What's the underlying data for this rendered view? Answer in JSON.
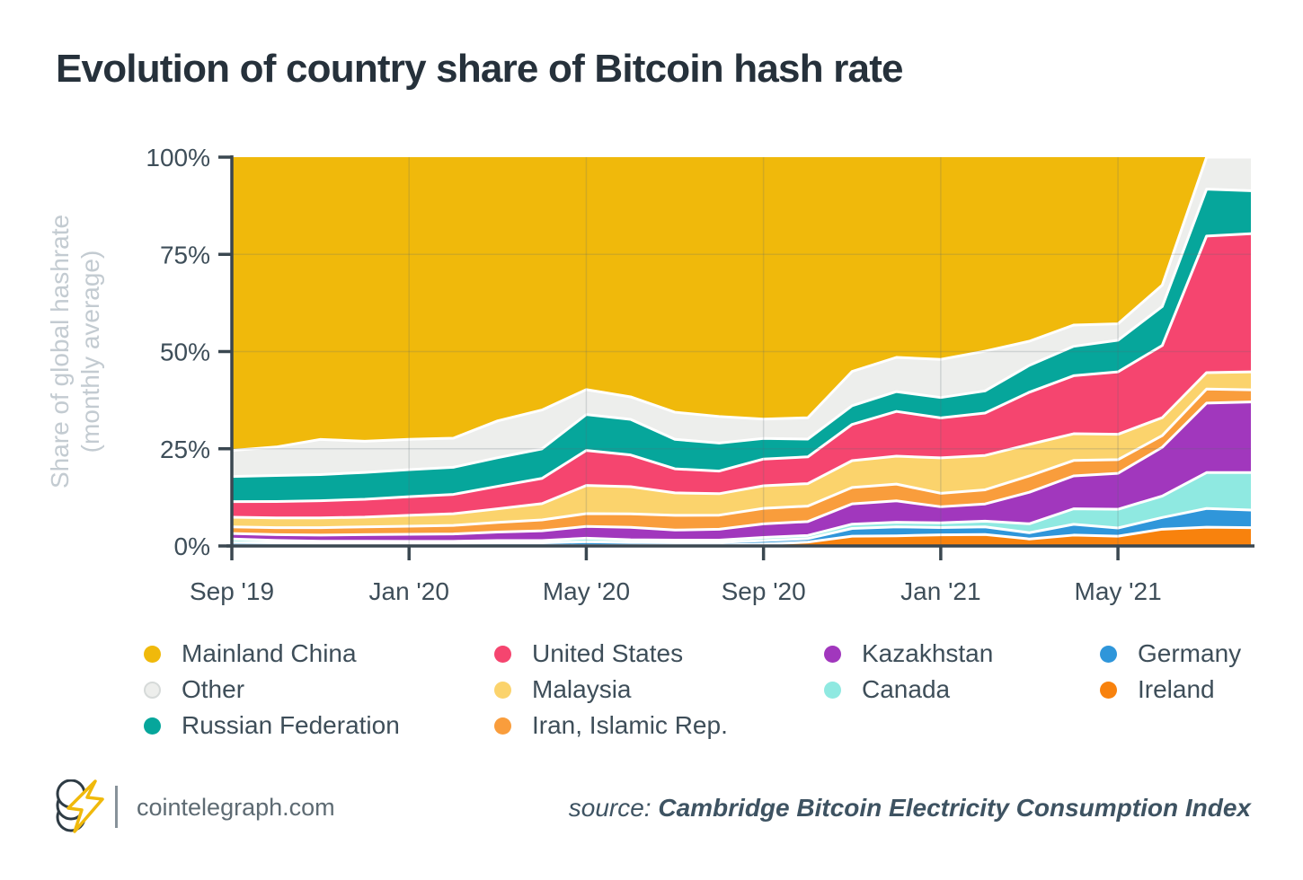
{
  "theme": {
    "background": "#FFFFFF",
    "title": "#26313B",
    "text": "#3E4E59",
    "muted": "#C3CBD1",
    "axis": "#3A4750",
    "footer_text": "#5E6B73",
    "source_text": "#3E5362",
    "accent": "#F0B90B"
  },
  "chart_data": {
    "type": "area",
    "stacked": true,
    "stack_note": "100% stacked area; series listed top-to-bottom as stacked and as shown in legend",
    "title": "Evolution of country share of Bitcoin hash rate",
    "ylabel_line1": "Share of global hashrate",
    "ylabel_line2": "(monthly average)",
    "ylim": [
      0,
      100
    ],
    "grid": true,
    "legend_position": "bottom",
    "y_ticks": [
      "100%",
      "75%",
      "50%",
      "25%",
      "0%"
    ],
    "x_tick_labels": [
      "Sep '19",
      "Jan '20",
      "May '20",
      "Sep '20",
      "Jan '21",
      "May '21"
    ],
    "x": [
      "Sep '19",
      "Oct '19",
      "Nov '19",
      "Dec '19",
      "Jan '20",
      "Feb '20",
      "Mar '20",
      "Apr '20",
      "May '20",
      "Jun '20",
      "Jul '20",
      "Aug '20",
      "Sep '20",
      "Oct '20",
      "Nov '20",
      "Dec '20",
      "Jan '21",
      "Feb '21",
      "Mar '21",
      "Apr '21",
      "May '21",
      "Jun '21",
      "Jul '21",
      "Aug '21"
    ],
    "series": [
      {
        "name": "Mainland China",
        "color": "#F0B90B",
        "values": [
          75.5,
          74.4,
          72.3,
          73.0,
          72.8,
          72.5,
          68.1,
          65.1,
          59.6,
          61.9,
          65.8,
          66.5,
          67.5,
          67.3,
          55.0,
          51.5,
          52.6,
          50.8,
          47.3,
          43.4,
          42.7,
          32.8,
          0.0,
          0.0
        ]
      },
      {
        "name": "Other",
        "color": "#EDEEEC",
        "dot_border": "#D6DAD9",
        "values": [
          6.7,
          7.3,
          9.0,
          8.0,
          7.8,
          7.5,
          9.5,
          10.0,
          6.4,
          5.8,
          7.0,
          6.8,
          5.0,
          5.5,
          8.8,
          8.8,
          9.9,
          10.4,
          6.2,
          5.5,
          4.2,
          5.5,
          8.2,
          8.6
        ]
      },
      {
        "name": "Russian Federation",
        "color": "#06A69B",
        "values": [
          6.5,
          6.7,
          6.7,
          6.9,
          7.0,
          7.0,
          7.4,
          7.6,
          9.2,
          9.2,
          7.6,
          7.2,
          5.3,
          4.6,
          4.8,
          5.1,
          5.3,
          5.8,
          6.9,
          7.6,
          8.1,
          10.0,
          12.0,
          11.0
        ]
      },
      {
        "name": "United States",
        "color": "#F5456F",
        "values": [
          4.0,
          4.2,
          4.4,
          4.6,
          4.8,
          5.0,
          5.8,
          6.5,
          9.0,
          8.2,
          6.2,
          5.8,
          6.9,
          6.9,
          9.3,
          11.5,
          10.4,
          11.1,
          13.4,
          15.0,
          16.0,
          18.5,
          35.0,
          35.4
        ]
      },
      {
        "name": "Malaysia",
        "color": "#FBD36C",
        "values": [
          2.5,
          2.5,
          2.5,
          2.5,
          2.8,
          3.0,
          3.5,
          4.2,
          7.2,
          7.0,
          5.8,
          5.5,
          5.8,
          5.8,
          6.9,
          7.2,
          9.2,
          9.0,
          8.1,
          6.9,
          6.5,
          4.6,
          4.2,
          4.6
        ]
      },
      {
        "name": "Iran, Islamic Rep.",
        "color": "#F99D3C",
        "values": [
          1.7,
          1.8,
          1.9,
          2.0,
          2.1,
          2.2,
          2.5,
          2.8,
          3.3,
          3.5,
          3.8,
          3.6,
          4.0,
          4.0,
          4.2,
          4.3,
          3.5,
          3.7,
          4.2,
          4.0,
          3.5,
          3.0,
          3.6,
          3.1
        ]
      },
      {
        "name": "Kazakhstan",
        "color": "#A137BD",
        "values": [
          1.4,
          1.5,
          1.6,
          1.7,
          1.8,
          1.9,
          2.2,
          2.5,
          3.0,
          3.2,
          2.6,
          2.8,
          3.5,
          3.6,
          5.2,
          5.5,
          4.2,
          4.5,
          8.1,
          8.5,
          9.2,
          12.5,
          17.8,
          18.1
        ]
      },
      {
        "name": "Canada",
        "color": "#8FE9E1",
        "values": [
          0.9,
          0.6,
          0.5,
          0.5,
          0.5,
          0.5,
          0.6,
          0.6,
          0.9,
          0.7,
          0.6,
          0.6,
          0.8,
          0.8,
          1.1,
          1.2,
          1.2,
          1.5,
          2.3,
          4.0,
          4.8,
          5.5,
          9.2,
          9.6
        ]
      },
      {
        "name": "Germany",
        "color": "#2F96DA",
        "values": [
          0.8,
          0.7,
          0.6,
          0.6,
          0.6,
          0.6,
          0.7,
          0.7,
          1.0,
          0.8,
          0.7,
          0.7,
          0.9,
          0.9,
          2.0,
          2.3,
          1.9,
          2.0,
          1.6,
          2.8,
          2.1,
          3.0,
          4.8,
          4.5
        ]
      },
      {
        "name": "Ireland",
        "color": "#F8820D",
        "values": [
          0.1,
          0.1,
          0.1,
          0.1,
          0.1,
          0.1,
          0.1,
          0.1,
          0.1,
          0.1,
          0.2,
          0.2,
          0.5,
          1.0,
          2.5,
          2.6,
          2.9,
          3.0,
          1.8,
          2.8,
          2.5,
          4.3,
          4.8,
          4.7
        ]
      }
    ]
  },
  "footer": {
    "site": "cointelegraph.com",
    "source_label": "source:",
    "source_name": "Cambridge Bitcoin Electricity Consumption Index",
    "logo": "cointelegraph-coins-lightning-logo"
  }
}
